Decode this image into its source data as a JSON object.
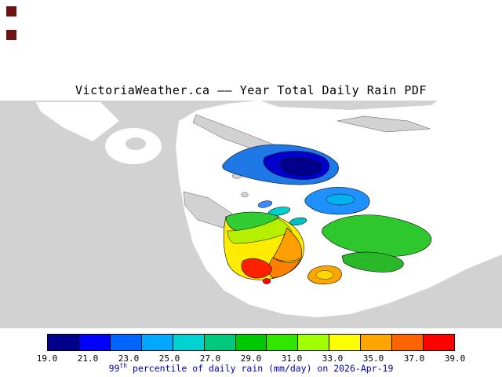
{
  "title": "VictoriaWeather.ca —— Year Total Daily Rain PDF",
  "corner_marks": {
    "color": "#6b1212"
  },
  "map": {
    "colors": {
      "land": "#d2d2d2",
      "water": "#ffffff",
      "blue_outer": "#1e78e6",
      "blue_mid": "#0000cd",
      "blue_core": "#00008b",
      "blue_patch": "#1e90ff",
      "cyan_inner": "#00b2ee",
      "teal_a": "#00ced1",
      "teal_b": "#00c0c0",
      "small_blue": "#3c8cff",
      "green_main": "#2ec82e",
      "green_lower": "#28b828",
      "fan_yellow": "#ffec00",
      "fan_green": "#32cd32",
      "fan_greenyellow": "#b4f000",
      "fan_orange": "#ffa000",
      "fan_dark_orange": "#ff7f00",
      "fan_red": "#ff2000",
      "oval_orange": "#ffa500",
      "oval_yellow": "#ffd700",
      "red_dot": "#ff0000"
    }
  },
  "colorbar": {
    "segment_colors": [
      "#00008b",
      "#0000ff",
      "#0064ff",
      "#00a8ff",
      "#00d2d2",
      "#00c87d",
      "#00c800",
      "#32e600",
      "#a0ff00",
      "#ffff00",
      "#ffa500",
      "#ff6400",
      "#ff0000"
    ],
    "tick_labels": [
      "19.0",
      "21.0",
      "23.0",
      "25.0",
      "27.0",
      "29.0",
      "31.0",
      "33.0",
      "35.0",
      "37.0",
      "39.0"
    ],
    "min": 19.0,
    "max": 39.0,
    "units": "mm/day"
  },
  "caption": {
    "prefix": "99",
    "superscript": "th",
    "rest": " percentile of daily rain (mm/day) on 2026-Apr-19",
    "color": "#0000b4"
  }
}
